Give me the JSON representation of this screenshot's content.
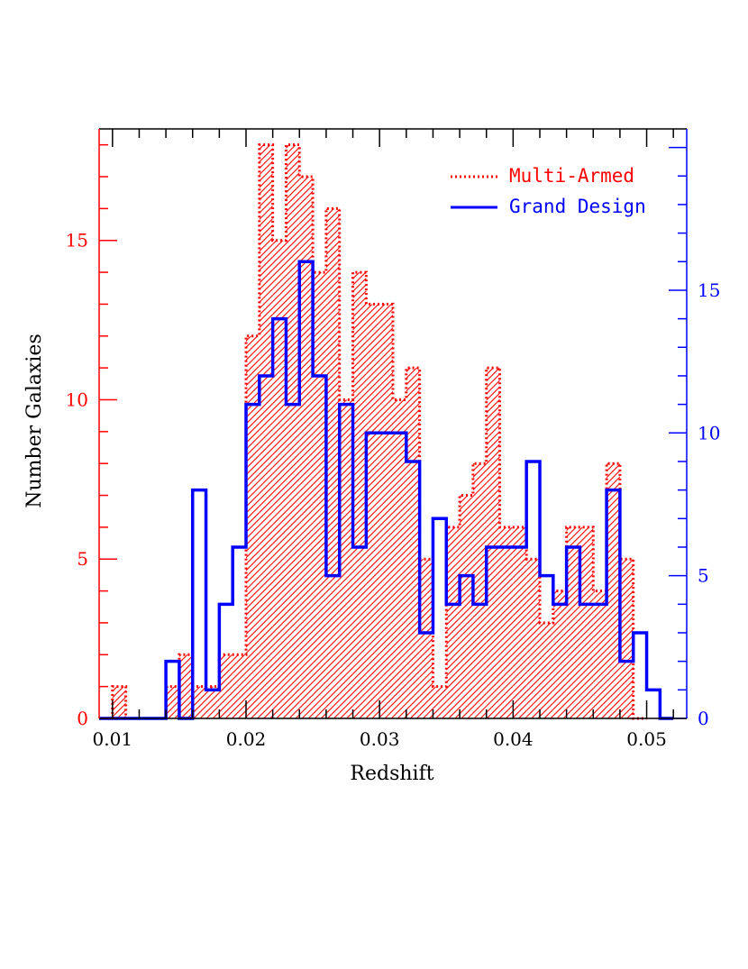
{
  "chart_data": {
    "type": "histogram",
    "xlabel": "Redshift",
    "ylabel": "Number Galaxies",
    "xlim": [
      0.009,
      0.053
    ],
    "bin_width": 0.001,
    "x_ticks": [
      {
        "value": 0.01,
        "label": "0.01"
      },
      {
        "value": 0.02,
        "label": "0.02"
      },
      {
        "value": 0.03,
        "label": "0.03"
      },
      {
        "value": 0.04,
        "label": "0.04"
      },
      {
        "value": 0.05,
        "label": "0.05"
      }
    ],
    "left_axis": {
      "color": "#ff0000",
      "ylim": [
        0,
        18.5
      ],
      "ticks": [
        {
          "value": 0,
          "label": "0"
        },
        {
          "value": 5,
          "label": "5"
        },
        {
          "value": 10,
          "label": "10"
        },
        {
          "value": 15,
          "label": "15"
        }
      ]
    },
    "right_axis": {
      "color": "#0000ff",
      "ylim": [
        0,
        20.65
      ],
      "ticks": [
        {
          "value": 0,
          "label": "0"
        },
        {
          "value": 5,
          "label": "5"
        },
        {
          "value": 10,
          "label": "10"
        },
        {
          "value": 15,
          "label": "15"
        }
      ]
    },
    "series": [
      {
        "name": "Multi-Armed",
        "axis": "left",
        "color": "#ff0000",
        "style": "dotted-hatched",
        "bin_edges_start": 0.01,
        "values": [
          1,
          0,
          0,
          0,
          1,
          2,
          1,
          1,
          2,
          2,
          12,
          18,
          15,
          18,
          17,
          14,
          16,
          10,
          14,
          13,
          13,
          10,
          11,
          5,
          1,
          6,
          7,
          8,
          11,
          6,
          6,
          5,
          3,
          4,
          6,
          6,
          4,
          8,
          5,
          0
        ]
      },
      {
        "name": "Grand Design",
        "axis": "right",
        "color": "#0000ff",
        "style": "solid",
        "bin_edges_start": 0.009,
        "values": [
          0,
          0,
          0,
          0,
          0,
          2,
          0,
          8,
          1,
          4,
          6,
          11,
          12,
          14,
          11,
          16,
          12,
          5,
          11,
          6,
          10,
          10,
          10,
          9,
          3,
          7,
          4,
          5,
          4,
          6,
          6,
          6,
          9,
          5,
          4,
          6,
          4,
          4,
          8,
          2,
          3,
          1,
          0
        ]
      }
    ]
  }
}
